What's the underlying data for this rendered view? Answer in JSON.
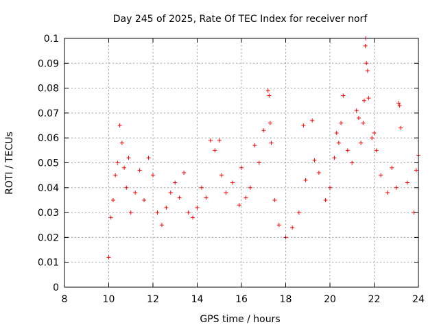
{
  "chart_data": {
    "type": "scatter",
    "title": "Day 245 of 2025, Rate Of TEC Index for receiver norf",
    "xlabel": "GPS time / hours",
    "ylabel": "ROTI / TECUs",
    "xlim": [
      8,
      24
    ],
    "ylim": [
      0,
      0.1
    ],
    "xticks": [
      "8",
      "10",
      "12",
      "14",
      "16",
      "18",
      "20",
      "22",
      "24"
    ],
    "xtick_values": [
      8,
      10,
      12,
      14,
      16,
      18,
      20,
      22,
      24
    ],
    "yticks": [
      "0",
      "0.01",
      "0.02",
      "0.03",
      "0.04",
      "0.05",
      "0.06",
      "0.07",
      "0.08",
      "0.09",
      "0.1"
    ],
    "ytick_values": [
      0,
      0.01,
      0.02,
      0.03,
      0.04,
      0.05,
      0.06,
      0.07,
      0.08,
      0.09,
      0.1
    ],
    "grid": true,
    "marker": "plus",
    "color": "#ff0000",
    "series": [
      {
        "points": [
          [
            10.0,
            0.012
          ],
          [
            10.1,
            0.028
          ],
          [
            10.2,
            0.035
          ],
          [
            10.3,
            0.045
          ],
          [
            10.4,
            0.05
          ],
          [
            10.5,
            0.065
          ],
          [
            10.6,
            0.058
          ],
          [
            10.7,
            0.048
          ],
          [
            10.8,
            0.04
          ],
          [
            10.9,
            0.052
          ],
          [
            11.0,
            0.03
          ],
          [
            11.2,
            0.038
          ],
          [
            11.4,
            0.047
          ],
          [
            11.6,
            0.035
          ],
          [
            11.8,
            0.052
          ],
          [
            12.0,
            0.045
          ],
          [
            12.2,
            0.03
          ],
          [
            12.4,
            0.025
          ],
          [
            12.6,
            0.032
          ],
          [
            12.8,
            0.038
          ],
          [
            13.0,
            0.042
          ],
          [
            13.2,
            0.036
          ],
          [
            13.4,
            0.046
          ],
          [
            13.6,
            0.03
          ],
          [
            13.8,
            0.028
          ],
          [
            14.0,
            0.032
          ],
          [
            14.2,
            0.04
          ],
          [
            14.4,
            0.036
          ],
          [
            14.6,
            0.059
          ],
          [
            14.8,
            0.055
          ],
          [
            15.0,
            0.059
          ],
          [
            15.1,
            0.045
          ],
          [
            15.3,
            0.038
          ],
          [
            15.6,
            0.042
          ],
          [
            15.9,
            0.033
          ],
          [
            16.0,
            0.048
          ],
          [
            16.2,
            0.036
          ],
          [
            16.4,
            0.04
          ],
          [
            16.6,
            0.057
          ],
          [
            16.8,
            0.05
          ],
          [
            17.0,
            0.063
          ],
          [
            17.2,
            0.079
          ],
          [
            17.25,
            0.077
          ],
          [
            17.3,
            0.066
          ],
          [
            17.35,
            0.058
          ],
          [
            17.5,
            0.035
          ],
          [
            17.7,
            0.025
          ],
          [
            18.0,
            0.02
          ],
          [
            18.3,
            0.024
          ],
          [
            18.6,
            0.03
          ],
          [
            18.8,
            0.065
          ],
          [
            18.9,
            0.043
          ],
          [
            19.2,
            0.067
          ],
          [
            19.3,
            0.051
          ],
          [
            19.5,
            0.046
          ],
          [
            19.8,
            0.035
          ],
          [
            20.0,
            0.04
          ],
          [
            20.2,
            0.052
          ],
          [
            20.3,
            0.062
          ],
          [
            20.4,
            0.058
          ],
          [
            20.5,
            0.066
          ],
          [
            20.6,
            0.077
          ],
          [
            20.8,
            0.055
          ],
          [
            21.0,
            0.05
          ],
          [
            21.2,
            0.071
          ],
          [
            21.3,
            0.068
          ],
          [
            21.4,
            0.058
          ],
          [
            21.5,
            0.066
          ],
          [
            21.55,
            0.075
          ],
          [
            21.6,
            0.097
          ],
          [
            21.62,
            0.1
          ],
          [
            21.65,
            0.09
          ],
          [
            21.7,
            0.087
          ],
          [
            21.75,
            0.076
          ],
          [
            21.9,
            0.06
          ],
          [
            22.0,
            0.062
          ],
          [
            22.1,
            0.055
          ],
          [
            22.3,
            0.045
          ],
          [
            22.6,
            0.038
          ],
          [
            22.8,
            0.048
          ],
          [
            23.0,
            0.04
          ],
          [
            23.1,
            0.074
          ],
          [
            23.15,
            0.073
          ],
          [
            23.2,
            0.064
          ],
          [
            23.5,
            0.042
          ],
          [
            23.8,
            0.03
          ],
          [
            23.9,
            0.047
          ],
          [
            24.0,
            0.053
          ]
        ]
      }
    ]
  }
}
